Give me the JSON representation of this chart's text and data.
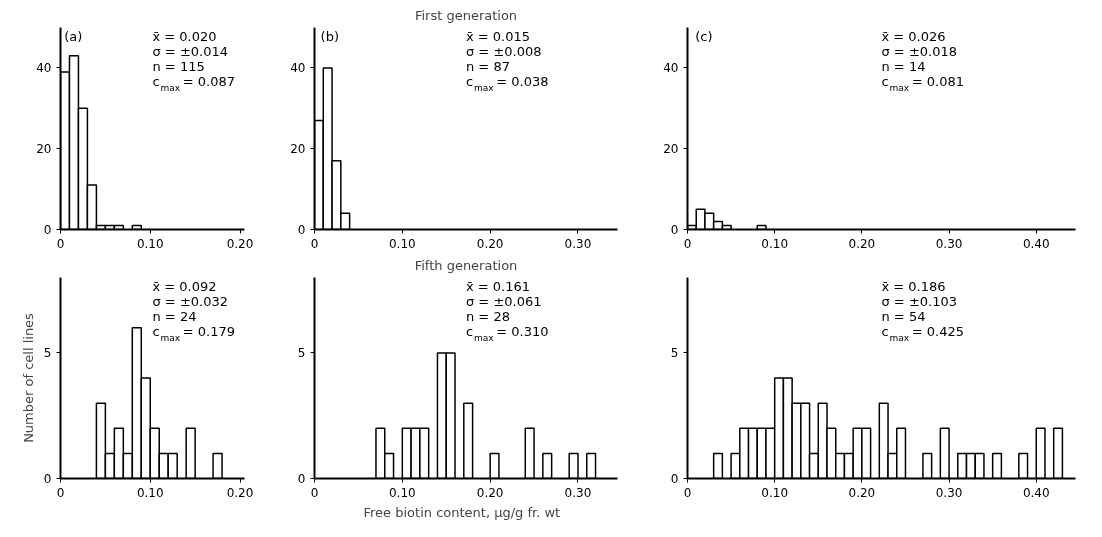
{
  "chart_data": [
    {
      "type": "histogram",
      "bins": [
        0,
        0.01,
        0.02,
        0.03,
        0.04,
        0.05,
        0.06,
        0.07,
        0.08,
        0.09
      ],
      "values": [
        39,
        43,
        30,
        11,
        1,
        1,
        1,
        0,
        1
      ],
      "color": "#ffffff",
      "xlim": [
        0,
        0.205
      ],
      "ylim": [
        0,
        50
      ],
      "xticks": [
        {
          "value": 0,
          "label": "0"
        },
        {
          "value": 0.1,
          "label": "0.10"
        },
        {
          "value": 0.2,
          "label": "0.20"
        }
      ],
      "yticks": [
        0,
        20,
        40
      ],
      "grid": false,
      "annotations": [
        "(a)",
        "x̄ = 0.020",
        "σ = ±0.014",
        "n = 115",
        "c$_{max}$ = 0.087"
      ]
    },
    {
      "type": "histogram",
      "title": "First generation",
      "bins": [
        0,
        0.01,
        0.02,
        0.03,
        0.04
      ],
      "values": [
        27,
        40,
        17,
        4
      ],
      "color": "#ffffff",
      "xlim": [
        0,
        0.345
      ],
      "ylim": [
        0,
        50
      ],
      "xticks": [
        {
          "value": 0,
          "label": "0"
        },
        {
          "value": 0.1,
          "label": "0.10"
        },
        {
          "value": 0.2,
          "label": "0.20"
        },
        {
          "value": 0.3,
          "label": "0.30"
        }
      ],
      "yticks": [
        0,
        20,
        40
      ],
      "grid": false,
      "annotations": [
        "(b)",
        "x̄ = 0.015",
        "σ = ±0.008",
        "n = 87",
        "c$_{max}$ = 0.038"
      ]
    },
    {
      "type": "histogram",
      "bins": [
        0,
        0.01,
        0.02,
        0.03,
        0.04,
        0.05,
        0.06,
        0.07,
        0.08,
        0.09
      ],
      "values": [
        1,
        5,
        4,
        2,
        1,
        0,
        0,
        0,
        1
      ],
      "color": "#ffffff",
      "xlim": [
        0,
        0.445
      ],
      "ylim": [
        0,
        50
      ],
      "xticks": [
        {
          "value": 0,
          "label": "0"
        },
        {
          "value": 0.1,
          "label": "0.10"
        },
        {
          "value": 0.2,
          "label": "0.20"
        },
        {
          "value": 0.3,
          "label": "0.30"
        },
        {
          "value": 0.4,
          "label": "0.40"
        }
      ],
      "yticks": [
        0,
        20,
        40
      ],
      "grid": false,
      "annotations": [
        "(c)",
        "x̄ = 0.026",
        "σ = ±0.018",
        "n = 14",
        "c$_{max}$ = 0.081"
      ]
    },
    {
      "type": "histogram",
      "ylabel": "Number of cell lines",
      "bins": [
        0.04,
        0.05,
        0.06,
        0.07,
        0.08,
        0.09,
        0.1,
        0.11,
        0.12,
        0.13,
        0.14,
        0.15,
        0.16,
        0.17,
        0.18
      ],
      "values": [
        3,
        1,
        2,
        1,
        6,
        4,
        2,
        1,
        1,
        0,
        2,
        0,
        0,
        1
      ],
      "color": "#ffffff",
      "xlim": [
        0,
        0.205
      ],
      "ylim": [
        0,
        8
      ],
      "xticks": [
        {
          "value": 0,
          "label": "0"
        },
        {
          "value": 0.1,
          "label": "0.10"
        },
        {
          "value": 0.2,
          "label": "0.20"
        }
      ],
      "yticks": [
        0,
        5
      ],
      "grid": false,
      "annotations": [
        "x̄ = 0.092",
        "σ = ±0.032",
        "n = 24",
        "c$_{max}$ = 0.179"
      ]
    },
    {
      "type": "histogram",
      "title": "Fifth generation",
      "xlabel": "Free biotin content,   μg/g fr. wt",
      "bins": [
        0.07,
        0.08,
        0.09,
        0.1,
        0.11,
        0.12,
        0.13,
        0.14,
        0.15,
        0.16,
        0.17,
        0.18,
        0.19,
        0.2,
        0.21,
        0.22,
        0.23,
        0.24,
        0.25,
        0.26,
        0.27,
        0.28,
        0.29,
        0.3,
        0.31,
        0.32
      ],
      "values": [
        2,
        1,
        0,
        2,
        2,
        2,
        0,
        5,
        5,
        0,
        3,
        0,
        0,
        1,
        0,
        0,
        0,
        2,
        0,
        1,
        0,
        0,
        1,
        0,
        1
      ],
      "color": "#ffffff",
      "xlim": [
        0,
        0.345
      ],
      "ylim": [
        0,
        8
      ],
      "xticks": [
        {
          "value": 0,
          "label": "0"
        },
        {
          "value": 0.1,
          "label": "0.10"
        },
        {
          "value": 0.2,
          "label": "0.20"
        },
        {
          "value": 0.3,
          "label": "0.30"
        }
      ],
      "yticks": [
        0,
        5
      ],
      "grid": false,
      "annotations": [
        "x̄ = 0.161",
        "σ = ±0.061",
        "n = 28",
        "c$_{max}$ = 0.310"
      ]
    },
    {
      "type": "histogram",
      "bins": [
        0.03,
        0.04,
        0.05,
        0.06,
        0.07,
        0.08,
        0.09,
        0.1,
        0.11,
        0.12,
        0.13,
        0.14,
        0.15,
        0.16,
        0.17,
        0.18,
        0.19,
        0.2,
        0.21,
        0.22,
        0.23,
        0.24,
        0.25,
        0.26,
        0.27,
        0.28,
        0.29,
        0.3,
        0.31,
        0.32,
        0.33,
        0.34,
        0.35,
        0.36,
        0.37,
        0.38,
        0.39,
        0.4,
        0.41,
        0.42,
        0.43
      ],
      "values": [
        1,
        0,
        1,
        2,
        2,
        2,
        2,
        4,
        4,
        3,
        3,
        1,
        3,
        2,
        1,
        1,
        2,
        2,
        0,
        3,
        1,
        2,
        0,
        0,
        1,
        0,
        2,
        0,
        1,
        1,
        1,
        0,
        1,
        0,
        0,
        1,
        0,
        2,
        0,
        2
      ],
      "color": "#ffffff",
      "xlim": [
        0,
        0.445
      ],
      "ylim": [
        0,
        8
      ],
      "xticks": [
        {
          "value": 0,
          "label": "0"
        },
        {
          "value": 0.1,
          "label": "0.10"
        },
        {
          "value": 0.2,
          "label": "0.20"
        },
        {
          "value": 0.3,
          "label": "0.30"
        },
        {
          "value": 0.4,
          "label": "0.40"
        }
      ],
      "yticks": [
        0,
        5
      ],
      "grid": false,
      "annotations": [
        "x̄ = 0.186",
        "σ = ±0.103",
        "n = 54",
        "c$_{max}$ = 0.425"
      ]
    }
  ]
}
